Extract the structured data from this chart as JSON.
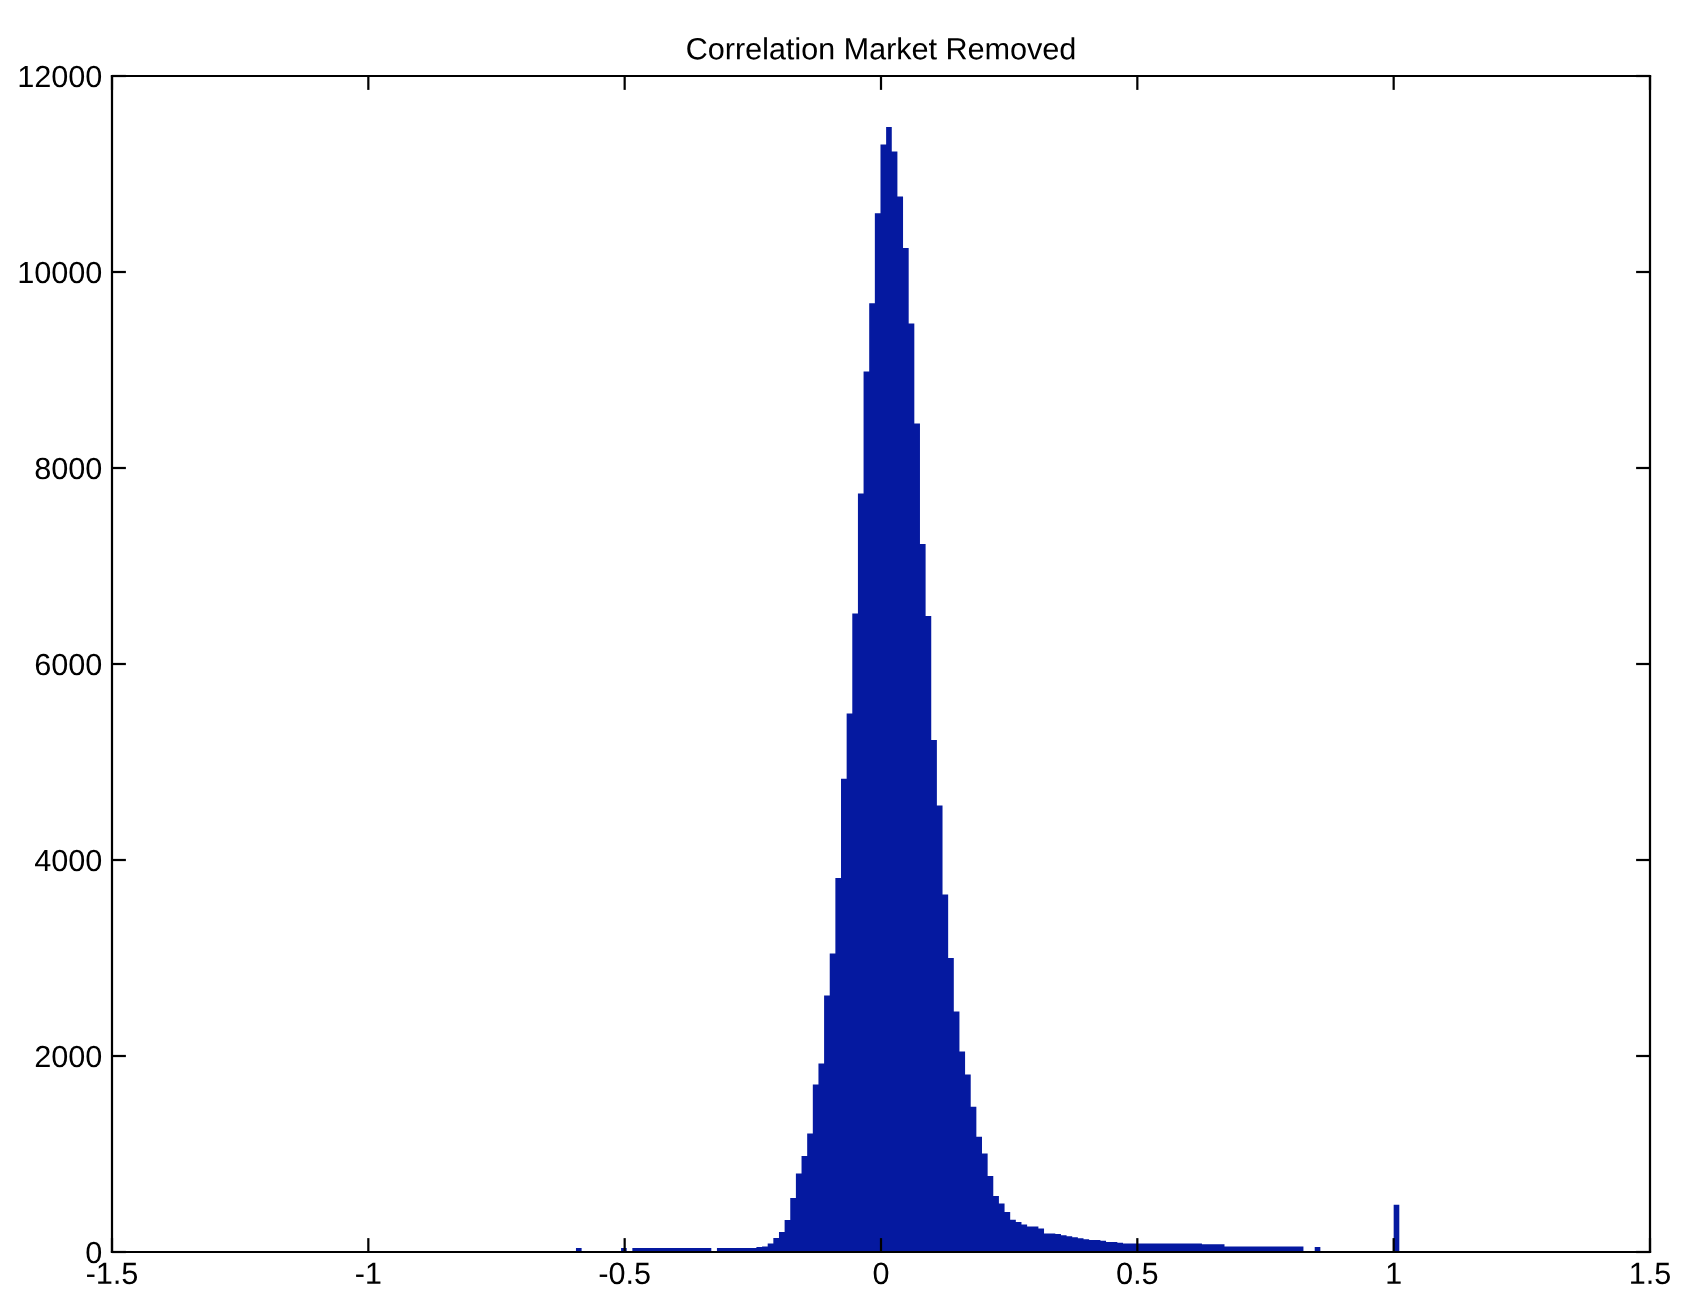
{
  "chart_data": {
    "type": "histogram",
    "title": "Correlation Market Removed",
    "bins": [
      -0.595,
      -0.584,
      -0.573,
      -0.562,
      -0.551,
      -0.54,
      -0.529,
      -0.518,
      -0.507,
      -0.496,
      -0.485,
      -0.474,
      -0.463,
      -0.452,
      -0.441,
      -0.43,
      -0.419,
      -0.408,
      -0.397,
      -0.386,
      -0.375,
      -0.364,
      -0.353,
      -0.342,
      -0.331,
      -0.32,
      -0.309,
      -0.298,
      -0.287,
      -0.276,
      -0.265,
      -0.254,
      -0.243,
      -0.232,
      -0.221,
      -0.21,
      -0.199,
      -0.188,
      -0.177,
      -0.166,
      -0.155,
      -0.144,
      -0.133,
      -0.122,
      -0.111,
      -0.1,
      -0.089,
      -0.078,
      -0.067,
      -0.056,
      -0.045,
      -0.034,
      -0.023,
      -0.012,
      -0.001,
      0.01,
      0.021,
      0.032,
      0.043,
      0.054,
      0.065,
      0.076,
      0.087,
      0.098,
      0.109,
      0.12,
      0.131,
      0.142,
      0.153,
      0.164,
      0.175,
      0.186,
      0.197,
      0.208,
      0.219,
      0.23,
      0.241,
      0.252,
      0.263,
      0.274,
      0.285,
      0.296,
      0.307,
      0.318,
      0.329,
      0.34,
      0.351,
      0.362,
      0.373,
      0.384,
      0.395,
      0.406,
      0.417,
      0.428,
      0.439,
      0.45,
      0.461,
      0.472,
      0.483,
      0.494,
      0.505,
      0.516,
      0.527,
      0.538,
      0.549,
      0.56,
      0.571,
      0.582,
      0.593,
      0.604,
      0.615,
      0.626,
      0.637,
      0.648,
      0.659,
      0.67,
      0.681,
      0.692,
      0.703,
      0.714,
      0.725,
      0.736,
      0.747,
      0.758,
      0.769,
      0.78,
      0.791,
      0.802,
      0.813,
      0.824,
      0.835,
      0.846,
      0.857,
      0.868,
      0.879,
      0.89,
      0.901,
      0.912,
      0.923,
      0.934,
      0.945,
      0.956,
      0.967,
      0.978,
      0.989,
      1.0,
      1.011
    ],
    "values": [
      40,
      0,
      0,
      0,
      0,
      0,
      0,
      0,
      40,
      0,
      40,
      40,
      40,
      40,
      40,
      40,
      40,
      40,
      40,
      40,
      40,
      40,
      40,
      40,
      0,
      40,
      40,
      40,
      40,
      40,
      40,
      40,
      50,
      55,
      88,
      143,
      204,
      327,
      551,
      800,
      980,
      1210,
      1708,
      1924,
      2618,
      3047,
      3816,
      4830,
      5495,
      6515,
      7740,
      8985,
      9680,
      10600,
      11300,
      11480,
      11230,
      10770,
      10245,
      9475,
      8455,
      7225,
      6490,
      5225,
      4557,
      3647,
      3000,
      2455,
      2047,
      1810,
      1483,
      1177,
      1006,
      776,
      571,
      496,
      408,
      330,
      306,
      280,
      260,
      260,
      240,
      190,
      190,
      183,
      170,
      160,
      150,
      140,
      130,
      122,
      122,
      115,
      102,
      102,
      95,
      88,
      88,
      88,
      88,
      88,
      88,
      88,
      88,
      88,
      88,
      88,
      88,
      88,
      88,
      80,
      80,
      80,
      80,
      55,
      55,
      55,
      55,
      55,
      55,
      55,
      55,
      55,
      55,
      55,
      55,
      55,
      55,
      0,
      0,
      50,
      0,
      0,
      0,
      0,
      0,
      0,
      0,
      0,
      0,
      0,
      0,
      0,
      0,
      483
    ],
    "color": "#0519a0",
    "xlim": [
      -1.5,
      1.5
    ],
    "xticks": [
      -1.5,
      -1,
      -0.5,
      0,
      0.5,
      1,
      1.5
    ],
    "ylim": [
      0,
      12000
    ],
    "yticks": [
      0,
      2000,
      4000,
      6000,
      8000,
      10000,
      12000
    ],
    "grid": false
  }
}
